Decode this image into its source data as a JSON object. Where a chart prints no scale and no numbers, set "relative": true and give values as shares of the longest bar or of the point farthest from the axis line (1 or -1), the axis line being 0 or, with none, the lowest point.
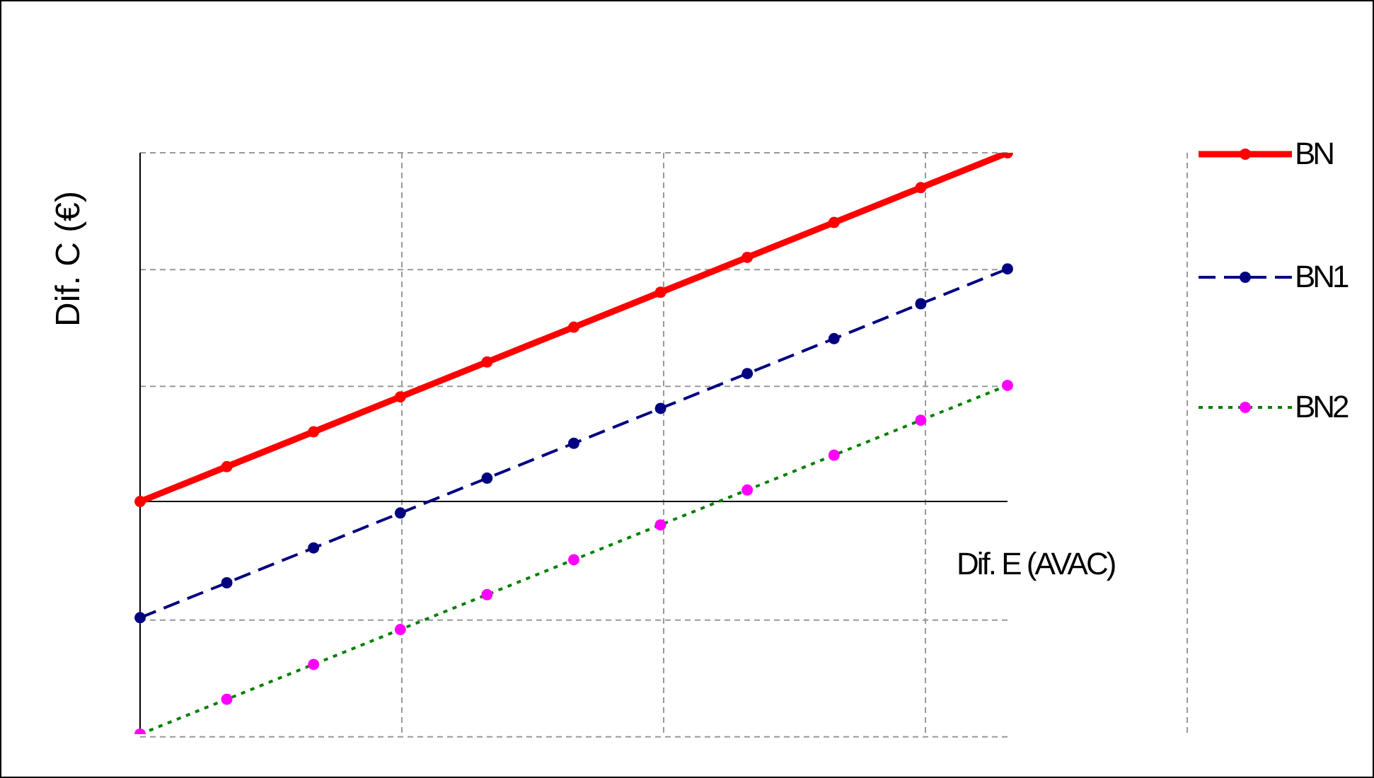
{
  "chart_data": {
    "type": "line",
    "relative": true,
    "xlabel": "Dif. E (AVAC)",
    "ylabel": "Dif. C (€)",
    "categories": [
      null,
      null,
      null,
      null,
      null,
      null,
      null,
      null,
      null,
      null,
      null
    ],
    "series": [
      {
        "name": "BN",
        "color": "#ff0000",
        "line_style": "solid",
        "values": [
          0,
          0.1,
          0.2,
          0.3,
          0.4,
          0.5,
          0.6,
          0.7,
          0.8,
          0.9,
          1.0
        ]
      },
      {
        "name": "BN1",
        "color": "#000080",
        "line_style": "dashed",
        "values": [
          -0.333,
          -0.233,
          -0.133,
          -0.033,
          0.067,
          0.167,
          0.267,
          0.367,
          0.467,
          0.567,
          0.667
        ]
      },
      {
        "name": "BN2",
        "color": "#008000",
        "colors": [
          "#ff00ff",
          "#ff00ff",
          "#ff00ff",
          "#ff00ff",
          "#ff00ff",
          "#ff00ff",
          "#ff00ff",
          "#ff00ff",
          "#ff00ff",
          "#ff00ff",
          "#ff00ff"
        ],
        "line_style": "dotted",
        "values": [
          -0.667,
          -0.567,
          -0.467,
          -0.367,
          -0.267,
          -0.167,
          -0.067,
          0.033,
          0.133,
          0.233,
          0.333
        ]
      }
    ],
    "marker": "circle",
    "grid": true,
    "legend": "right"
  }
}
